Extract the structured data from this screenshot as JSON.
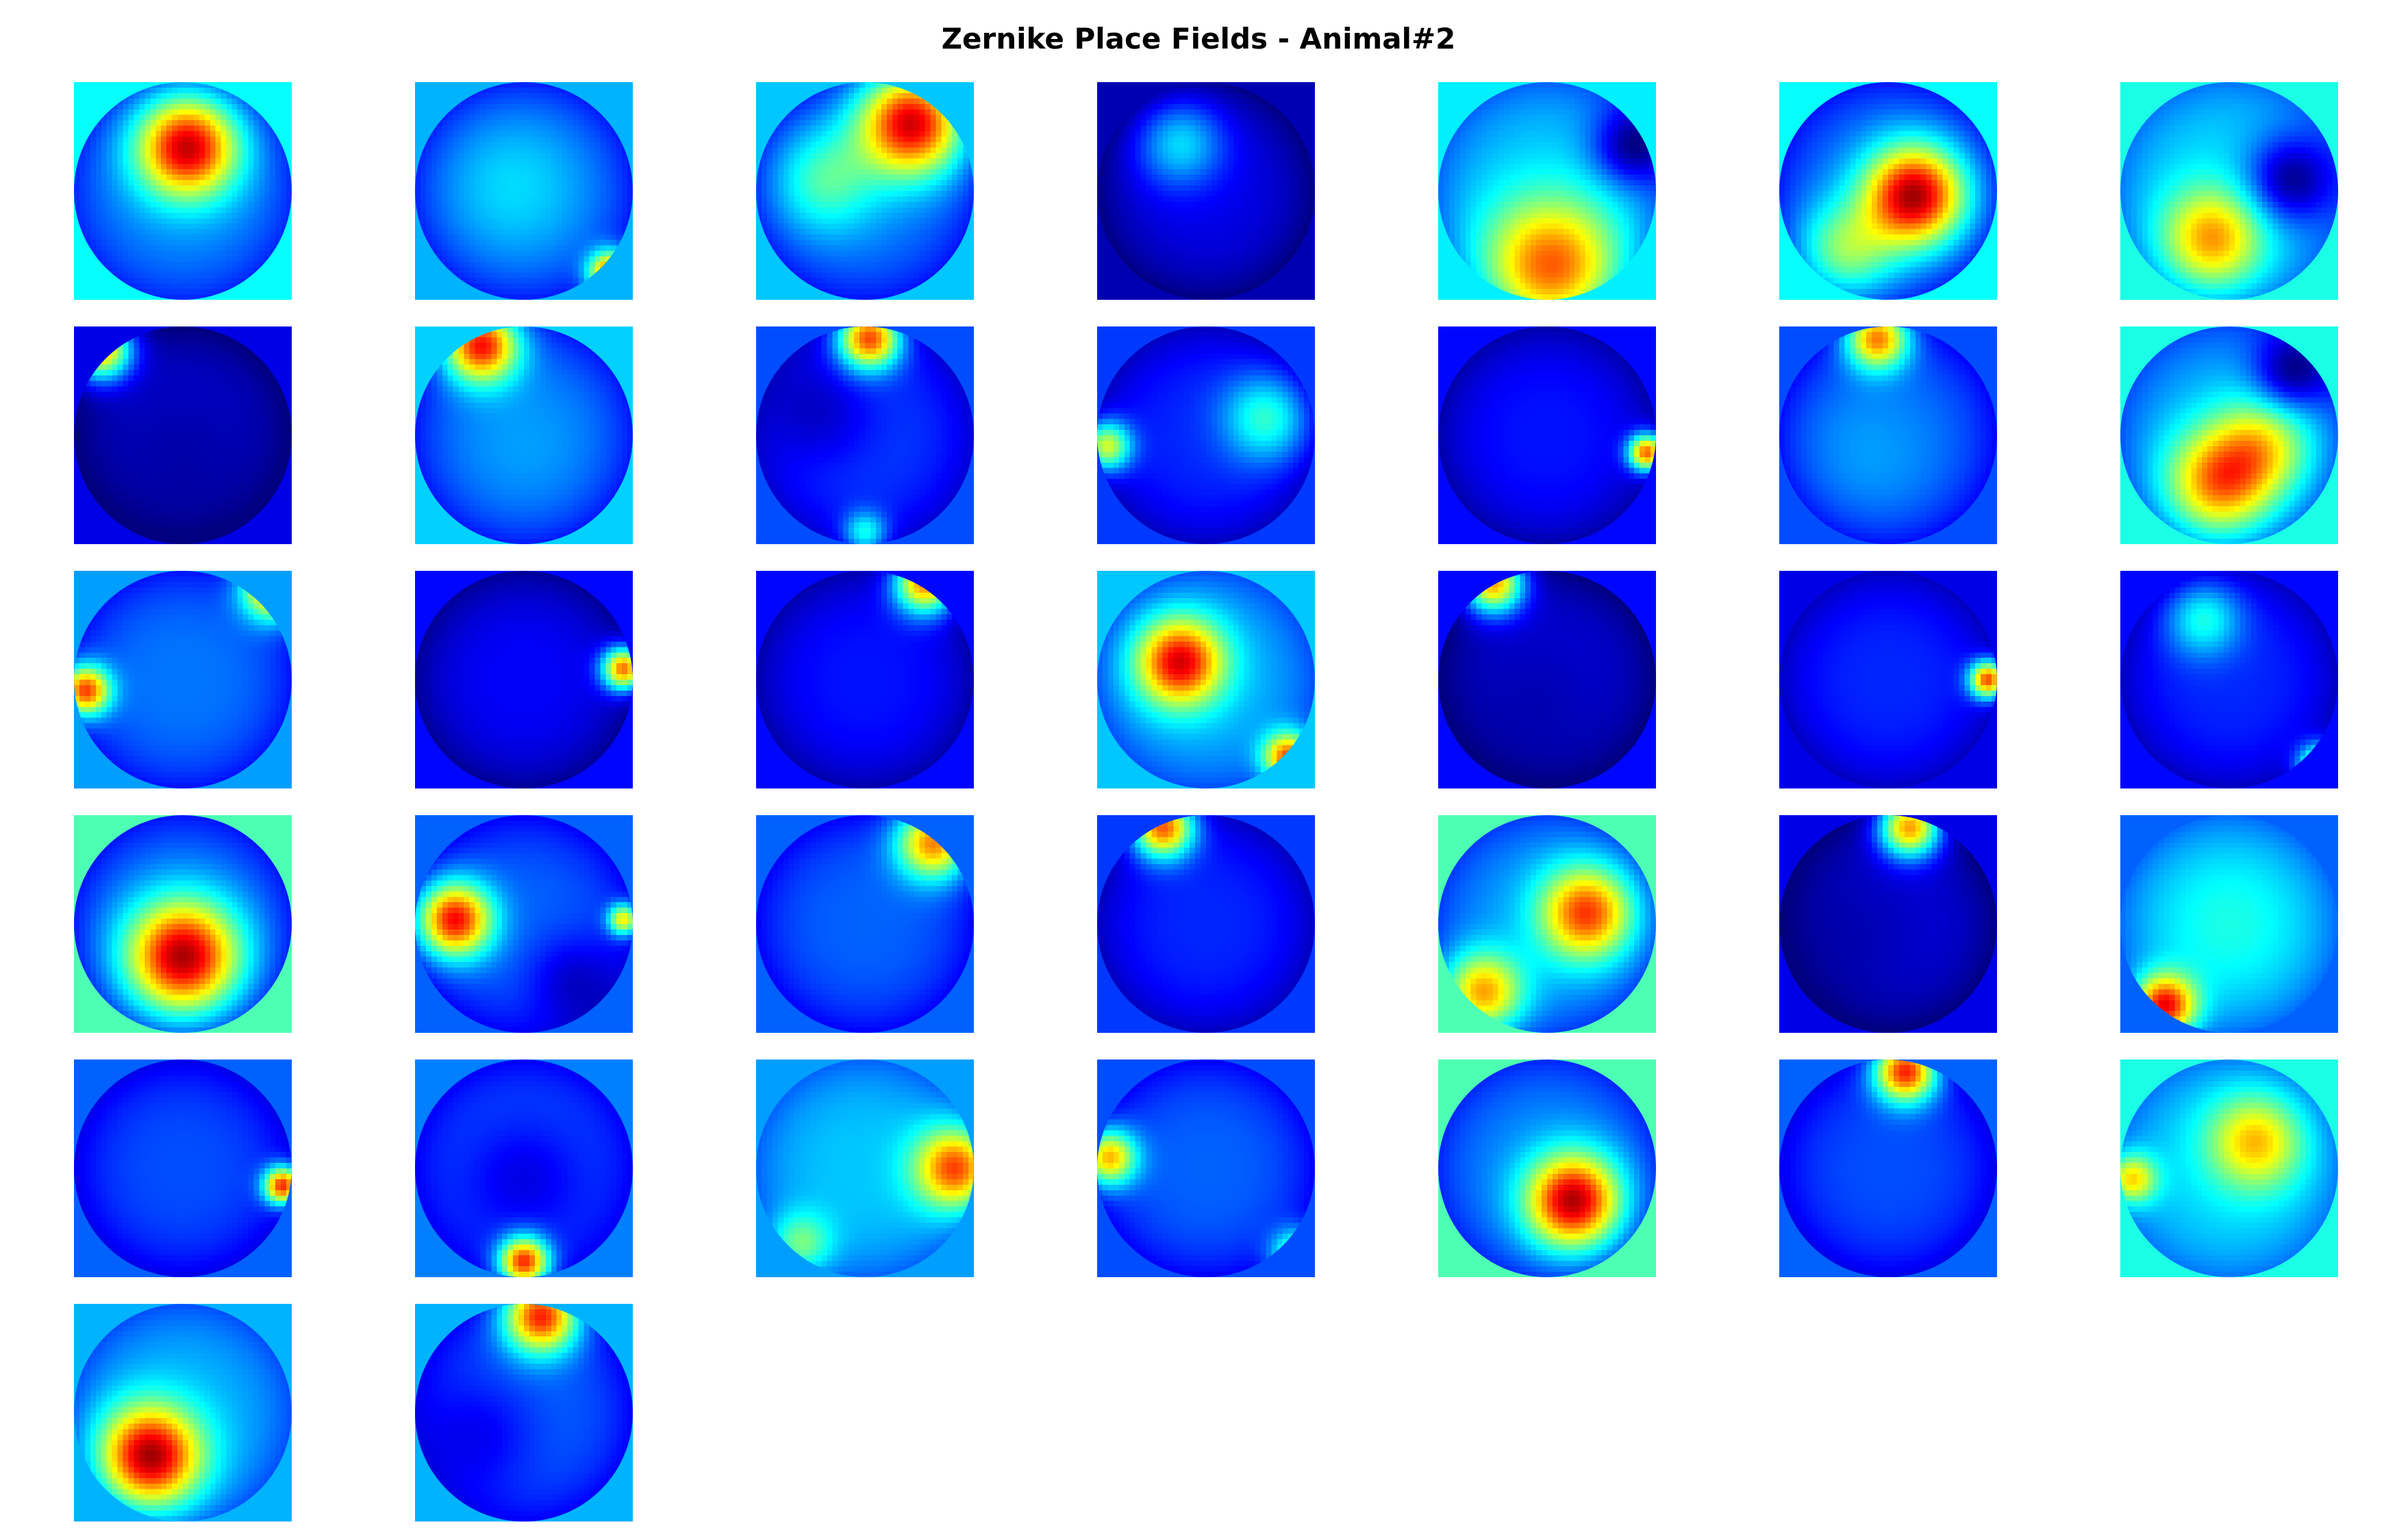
{
  "chart_data": {
    "type": "heatmap",
    "title": "Zernike Place Fields - Animal#2",
    "colormap": "jet",
    "grid": false,
    "layout": {
      "rows": 6,
      "cols": 7,
      "panel_count": 37
    },
    "value_range": [
      0,
      1
    ],
    "panels": [
      {
        "index": 1,
        "background": 0.38,
        "base": 0.26,
        "blobs": [
          {
            "u": 0.52,
            "v": 0.3,
            "s": 0.16,
            "a": 0.68
          }
        ]
      },
      {
        "index": 2,
        "background": 0.3,
        "base": 0.24,
        "blobs": [
          {
            "u": 0.45,
            "v": 0.48,
            "s": 0.24,
            "a": 0.1
          },
          {
            "u": 0.9,
            "v": 0.88,
            "s": 0.07,
            "a": 0.72
          }
        ]
      },
      {
        "index": 3,
        "background": 0.32,
        "base": 0.24,
        "blobs": [
          {
            "u": 0.72,
            "v": 0.18,
            "s": 0.17,
            "a": 0.72
          },
          {
            "u": 0.32,
            "v": 0.45,
            "s": 0.17,
            "a": 0.22
          }
        ]
      },
      {
        "index": 4,
        "background": 0.05,
        "base": 0.1,
        "blobs": [
          {
            "u": 0.38,
            "v": 0.28,
            "s": 0.14,
            "a": 0.25
          }
        ]
      },
      {
        "index": 5,
        "background": 0.36,
        "base": 0.32,
        "blobs": [
          {
            "u": 0.52,
            "v": 0.86,
            "s": 0.22,
            "a": 0.5
          },
          {
            "u": 0.88,
            "v": 0.3,
            "s": 0.12,
            "a": -0.25
          }
        ]
      },
      {
        "index": 6,
        "background": 0.38,
        "base": 0.24,
        "blobs": [
          {
            "u": 0.62,
            "v": 0.52,
            "s": 0.16,
            "a": 0.72
          },
          {
            "u": 0.3,
            "v": 0.78,
            "s": 0.16,
            "a": 0.3
          }
        ]
      },
      {
        "index": 7,
        "background": 0.4,
        "base": 0.34,
        "blobs": [
          {
            "u": 0.78,
            "v": 0.45,
            "s": 0.14,
            "a": -0.3
          },
          {
            "u": 0.42,
            "v": 0.72,
            "s": 0.16,
            "a": 0.4
          }
        ]
      },
      {
        "index": 8,
        "background": 0.1,
        "base": 0.1,
        "blobs": [
          {
            "u": 0.12,
            "v": 0.1,
            "s": 0.1,
            "a": 0.75
          },
          {
            "u": 0.5,
            "v": 0.6,
            "s": 0.28,
            "a": -0.06
          }
        ]
      },
      {
        "index": 9,
        "background": 0.33,
        "base": 0.24,
        "blobs": [
          {
            "u": 0.3,
            "v": 0.08,
            "s": 0.12,
            "a": 0.7
          },
          {
            "u": 0.5,
            "v": 0.55,
            "s": 0.25,
            "a": 0.04
          }
        ]
      },
      {
        "index": 10,
        "background": 0.2,
        "base": 0.18,
        "blobs": [
          {
            "u": 0.52,
            "v": 0.05,
            "s": 0.1,
            "a": 0.7
          },
          {
            "u": 0.3,
            "v": 0.4,
            "s": 0.16,
            "a": -0.1
          },
          {
            "u": 0.5,
            "v": 0.95,
            "s": 0.07,
            "a": 0.28
          }
        ]
      },
      {
        "index": 11,
        "background": 0.18,
        "base": 0.16,
        "blobs": [
          {
            "u": 0.78,
            "v": 0.42,
            "s": 0.14,
            "a": 0.28
          },
          {
            "u": 0.04,
            "v": 0.55,
            "s": 0.08,
            "a": 0.5
          }
        ]
      },
      {
        "index": 12,
        "background": 0.13,
        "base": 0.14,
        "blobs": [
          {
            "u": 0.96,
            "v": 0.58,
            "s": 0.06,
            "a": 0.72
          }
        ]
      },
      {
        "index": 13,
        "background": 0.2,
        "base": 0.22,
        "blobs": [
          {
            "u": 0.45,
            "v": 0.05,
            "s": 0.1,
            "a": 0.6
          },
          {
            "u": 0.4,
            "v": 0.6,
            "s": 0.26,
            "a": 0.06
          }
        ]
      },
      {
        "index": 14,
        "background": 0.4,
        "base": 0.3,
        "blobs": [
          {
            "u": 0.45,
            "v": 0.72,
            "s": 0.17,
            "a": 0.45
          },
          {
            "u": 0.65,
            "v": 0.55,
            "s": 0.16,
            "a": 0.3
          },
          {
            "u": 0.78,
            "v": 0.22,
            "s": 0.12,
            "a": -0.25
          }
        ]
      },
      {
        "index": 15,
        "background": 0.28,
        "base": 0.24,
        "blobs": [
          {
            "u": 0.92,
            "v": 0.08,
            "s": 0.1,
            "a": 0.7
          },
          {
            "u": 0.05,
            "v": 0.55,
            "s": 0.08,
            "a": 0.65
          }
        ]
      },
      {
        "index": 16,
        "background": 0.13,
        "base": 0.12,
        "blobs": [
          {
            "u": 0.96,
            "v": 0.45,
            "s": 0.07,
            "a": 0.72
          }
        ]
      },
      {
        "index": 17,
        "background": 0.13,
        "base": 0.14,
        "blobs": [
          {
            "u": 0.78,
            "v": 0.05,
            "s": 0.1,
            "a": 0.72
          }
        ]
      },
      {
        "index": 18,
        "background": 0.32,
        "base": 0.3,
        "blobs": [
          {
            "u": 0.38,
            "v": 0.42,
            "s": 0.14,
            "a": 0.62
          },
          {
            "u": 0.88,
            "v": 0.86,
            "s": 0.08,
            "a": 0.62
          }
        ]
      },
      {
        "index": 19,
        "background": 0.13,
        "base": 0.1,
        "blobs": [
          {
            "u": 0.25,
            "v": 0.05,
            "s": 0.1,
            "a": 0.72
          },
          {
            "u": 0.45,
            "v": 0.6,
            "s": 0.24,
            "a": -0.05
          }
        ]
      },
      {
        "index": 20,
        "background": 0.1,
        "base": 0.16,
        "blobs": [
          {
            "u": 0.96,
            "v": 0.5,
            "s": 0.06,
            "a": 0.72
          }
        ]
      },
      {
        "index": 21,
        "background": 0.13,
        "base": 0.16,
        "blobs": [
          {
            "u": 0.38,
            "v": 0.22,
            "s": 0.12,
            "a": 0.26
          },
          {
            "u": 0.92,
            "v": 0.9,
            "s": 0.07,
            "a": 0.62
          }
        ]
      },
      {
        "index": 22,
        "background": 0.45,
        "base": 0.24,
        "blobs": [
          {
            "u": 0.5,
            "v": 0.65,
            "s": 0.18,
            "a": 0.72
          }
        ]
      },
      {
        "index": 23,
        "background": 0.22,
        "base": 0.22,
        "blobs": [
          {
            "u": 0.18,
            "v": 0.48,
            "s": 0.12,
            "a": 0.68
          },
          {
            "u": 0.72,
            "v": 0.75,
            "s": 0.14,
            "a": -0.12
          },
          {
            "u": 0.96,
            "v": 0.48,
            "s": 0.05,
            "a": 0.5
          }
        ]
      },
      {
        "index": 24,
        "background": 0.22,
        "base": 0.22,
        "blobs": [
          {
            "u": 0.82,
            "v": 0.12,
            "s": 0.12,
            "a": 0.62
          }
        ]
      },
      {
        "index": 25,
        "background": 0.18,
        "base": 0.16,
        "blobs": [
          {
            "u": 0.3,
            "v": 0.05,
            "s": 0.1,
            "a": 0.72
          }
        ]
      },
      {
        "index": 26,
        "background": 0.45,
        "base": 0.28,
        "blobs": [
          {
            "u": 0.68,
            "v": 0.45,
            "s": 0.15,
            "a": 0.55
          },
          {
            "u": 0.2,
            "v": 0.82,
            "s": 0.13,
            "a": 0.5
          }
        ]
      },
      {
        "index": 27,
        "background": 0.1,
        "base": 0.1,
        "blobs": [
          {
            "u": 0.6,
            "v": 0.05,
            "s": 0.1,
            "a": 0.7
          },
          {
            "u": 0.35,
            "v": 0.55,
            "s": 0.25,
            "a": -0.05
          }
        ]
      },
      {
        "index": 28,
        "background": 0.22,
        "base": 0.32,
        "blobs": [
          {
            "u": 0.2,
            "v": 0.88,
            "s": 0.1,
            "a": 0.65
          },
          {
            "u": 0.5,
            "v": 0.5,
            "s": 0.25,
            "a": 0.08
          }
        ]
      },
      {
        "index": 29,
        "background": 0.22,
        "base": 0.2,
        "blobs": [
          {
            "u": 0.96,
            "v": 0.58,
            "s": 0.06,
            "a": 0.72
          }
        ]
      },
      {
        "index": 30,
        "background": 0.25,
        "base": 0.22,
        "blobs": [
          {
            "u": 0.5,
            "v": 0.93,
            "s": 0.08,
            "a": 0.7
          },
          {
            "u": 0.5,
            "v": 0.55,
            "s": 0.2,
            "a": -0.12
          }
        ]
      },
      {
        "index": 31,
        "background": 0.28,
        "base": 0.32,
        "blobs": [
          {
            "u": 0.92,
            "v": 0.5,
            "s": 0.13,
            "a": 0.55
          },
          {
            "u": 0.2,
            "v": 0.85,
            "s": 0.1,
            "a": 0.25
          }
        ]
      },
      {
        "index": 32,
        "background": 0.2,
        "base": 0.22,
        "blobs": [
          {
            "u": 0.05,
            "v": 0.45,
            "s": 0.09,
            "a": 0.55
          },
          {
            "u": 0.92,
            "v": 0.9,
            "s": 0.08,
            "a": 0.45
          }
        ]
      },
      {
        "index": 33,
        "background": 0.45,
        "base": 0.26,
        "blobs": [
          {
            "u": 0.62,
            "v": 0.65,
            "s": 0.15,
            "a": 0.7
          }
        ]
      },
      {
        "index": 34,
        "background": 0.22,
        "base": 0.2,
        "blobs": [
          {
            "u": 0.58,
            "v": 0.05,
            "s": 0.1,
            "a": 0.72
          }
        ]
      },
      {
        "index": 35,
        "background": 0.4,
        "base": 0.34,
        "blobs": [
          {
            "u": 0.62,
            "v": 0.38,
            "s": 0.15,
            "a": 0.36
          },
          {
            "u": 0.05,
            "v": 0.55,
            "s": 0.08,
            "a": 0.4
          }
        ]
      },
      {
        "index": 36,
        "background": 0.3,
        "base": 0.3,
        "blobs": [
          {
            "u": 0.35,
            "v": 0.7,
            "s": 0.16,
            "a": 0.68
          }
        ]
      },
      {
        "index": 37,
        "background": 0.3,
        "base": 0.22,
        "blobs": [
          {
            "u": 0.58,
            "v": 0.05,
            "s": 0.12,
            "a": 0.7
          },
          {
            "u": 0.3,
            "v": 0.6,
            "s": 0.18,
            "a": -0.1
          }
        ]
      }
    ]
  }
}
